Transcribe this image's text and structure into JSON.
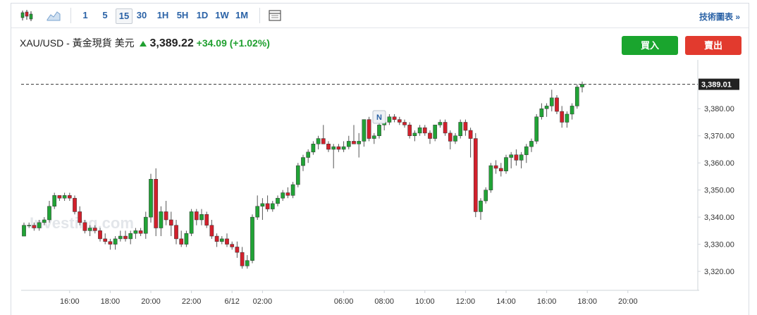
{
  "toolbar": {
    "intervals": [
      "1",
      "5",
      "15",
      "30",
      "1H",
      "5H",
      "1D",
      "1W",
      "1M"
    ],
    "active_interval": "15",
    "tech_chart_link": "技術圖表 »"
  },
  "quote": {
    "symbol": "XAU/USD - 黃金現貨 美元",
    "price": "3,389.22",
    "change": "+34.09",
    "change_pct": "(+1.02%)",
    "direction": "up"
  },
  "actions": {
    "buy": "買入",
    "sell": "賣出"
  },
  "colors": {
    "up": "#21a336",
    "down": "#d2202c",
    "link": "#2a62a6",
    "buy": "#1aa52e",
    "sell": "#e23a2e"
  },
  "chart_data": {
    "type": "candlestick",
    "title": "",
    "xlabel": "",
    "ylabel": "",
    "ylim": [
      3313,
      3398
    ],
    "y_ticks": [
      "3,320.00",
      "3,330.00",
      "3,340.00",
      "3,350.00",
      "3,360.00",
      "3,370.00",
      "3,380.00"
    ],
    "y_tick_values": [
      3320,
      3330,
      3340,
      3350,
      3360,
      3370,
      3380
    ],
    "x_ticks": [
      "16:00",
      "18:00",
      "20:00",
      "22:00",
      "6/12",
      "02:00",
      "06:00",
      "08:00",
      "10:00",
      "12:00",
      "14:00",
      "16:00",
      "18:00",
      "20:00"
    ],
    "x_tick_index": [
      9,
      17,
      25,
      33,
      41,
      47,
      63,
      71,
      79,
      87,
      95,
      103,
      111,
      119
    ],
    "last_price_label": "3,389.01",
    "last_price": 3389.01,
    "news_marker": {
      "label": "N",
      "index": 70
    },
    "watermark": "Investing.com",
    "grid": false,
    "candles": [
      [
        3333,
        3338,
        3333,
        3337
      ],
      [
        3337,
        3338,
        3336,
        3337
      ],
      [
        3337,
        3338,
        3335,
        3336
      ],
      [
        3336,
        3339,
        3335,
        3338
      ],
      [
        3338,
        3340,
        3337,
        3339
      ],
      [
        3339,
        3346,
        3338,
        3344
      ],
      [
        3344,
        3349,
        3343,
        3348
      ],
      [
        3348,
        3348,
        3346,
        3347
      ],
      [
        3347,
        3349,
        3346,
        3348
      ],
      [
        3348,
        3349,
        3346,
        3347
      ],
      [
        3347,
        3348,
        3341,
        3342
      ],
      [
        3342,
        3344,
        3337,
        3338
      ],
      [
        3338,
        3339,
        3334,
        3335
      ],
      [
        3335,
        3337,
        3333,
        3336
      ],
      [
        3336,
        3337,
        3334,
        3335
      ],
      [
        3335,
        3336,
        3331,
        3332
      ],
      [
        3332,
        3334,
        3330,
        3331
      ],
      [
        3331,
        3332,
        3328,
        3330
      ],
      [
        3330,
        3333,
        3328,
        3332
      ],
      [
        3332,
        3335,
        3331,
        3333
      ],
      [
        3333,
        3335,
        3331,
        3332
      ],
      [
        3332,
        3335,
        3330,
        3334
      ],
      [
        3334,
        3336,
        3332,
        3335
      ],
      [
        3335,
        3336,
        3333,
        3334
      ],
      [
        3334,
        3342,
        3332,
        3340
      ],
      [
        3340,
        3356,
        3338,
        3354
      ],
      [
        3354,
        3358,
        3333,
        3336
      ],
      [
        3336,
        3344,
        3333,
        3342
      ],
      [
        3342,
        3346,
        3337,
        3339
      ],
      [
        3339,
        3342,
        3333,
        3337
      ],
      [
        3337,
        3339,
        3330,
        3332
      ],
      [
        3332,
        3335,
        3329,
        3330
      ],
      [
        3330,
        3335,
        3329,
        3334
      ],
      [
        3334,
        3343,
        3333,
        3342
      ],
      [
        3342,
        3343,
        3337,
        3339
      ],
      [
        3339,
        3343,
        3337,
        3341
      ],
      [
        3341,
        3342,
        3336,
        3337
      ],
      [
        3337,
        3339,
        3332,
        3333
      ],
      [
        3333,
        3334,
        3329,
        3331
      ],
      [
        3331,
        3333,
        3330,
        3332
      ],
      [
        3332,
        3334,
        3329,
        3330
      ],
      [
        3330,
        3331,
        3328,
        3329
      ],
      [
        3329,
        3331,
        3325,
        3327
      ],
      [
        3327,
        3329,
        3321,
        3322
      ],
      [
        3322,
        3326,
        3321,
        3324
      ],
      [
        3324,
        3341,
        3323,
        3340
      ],
      [
        3340,
        3348,
        3339,
        3344
      ],
      [
        3344,
        3347,
        3339,
        3345
      ],
      [
        3345,
        3348,
        3342,
        3343
      ],
      [
        3343,
        3346,
        3342,
        3345
      ],
      [
        3345,
        3348,
        3344,
        3347
      ],
      [
        3347,
        3350,
        3346,
        3349
      ],
      [
        3349,
        3351,
        3347,
        3348
      ],
      [
        3348,
        3353,
        3347,
        3352
      ],
      [
        3352,
        3360,
        3351,
        3359
      ],
      [
        3359,
        3363,
        3357,
        3362
      ],
      [
        3362,
        3365,
        3360,
        3364
      ],
      [
        3364,
        3368,
        3363,
        3367
      ],
      [
        3367,
        3370,
        3365,
        3369
      ],
      [
        3369,
        3374,
        3367,
        3367
      ],
      [
        3367,
        3368,
        3364,
        3365
      ],
      [
        3365,
        3367,
        3358,
        3366
      ],
      [
        3366,
        3367,
        3364,
        3365
      ],
      [
        3365,
        3368,
        3364,
        3366
      ],
      [
        3366,
        3370,
        3365,
        3368
      ],
      [
        3368,
        3374,
        3367,
        3367
      ],
      [
        3367,
        3371,
        3362,
        3368
      ],
      [
        3368,
        3376,
        3366,
        3376
      ],
      [
        3376,
        3377,
        3368,
        3369
      ],
      [
        3369,
        3371,
        3367,
        3370
      ],
      [
        3370,
        3376,
        3369,
        3374
      ],
      [
        3374,
        3376,
        3372,
        3375
      ],
      [
        3375,
        3378,
        3374,
        3377
      ],
      [
        3377,
        3378,
        3375,
        3376
      ],
      [
        3376,
        3377,
        3374,
        3375
      ],
      [
        3375,
        3376,
        3373,
        3374
      ],
      [
        3374,
        3375,
        3369,
        3370
      ],
      [
        3370,
        3372,
        3368,
        3371
      ],
      [
        3371,
        3374,
        3370,
        3373
      ],
      [
        3373,
        3374,
        3370,
        3371
      ],
      [
        3371,
        3372,
        3367,
        3369
      ],
      [
        3369,
        3374,
        3368,
        3374
      ],
      [
        3374,
        3376,
        3373,
        3375
      ],
      [
        3375,
        3376,
        3370,
        3371
      ],
      [
        3371,
        3372,
        3365,
        3368
      ],
      [
        3368,
        3371,
        3367,
        3370
      ],
      [
        3370,
        3376,
        3369,
        3375
      ],
      [
        3375,
        3376,
        3370,
        3372
      ],
      [
        3372,
        3373,
        3362,
        3369
      ],
      [
        3369,
        3371,
        3340,
        3342
      ],
      [
        3342,
        3347,
        3339,
        3346
      ],
      [
        3346,
        3351,
        3345,
        3350
      ],
      [
        3350,
        3360,
        3349,
        3359
      ],
      [
        3359,
        3361,
        3356,
        3358
      ],
      [
        3358,
        3360,
        3355,
        3357
      ],
      [
        3357,
        3363,
        3356,
        3362
      ],
      [
        3362,
        3364,
        3358,
        3363
      ],
      [
        3363,
        3365,
        3359,
        3361
      ],
      [
        3361,
        3364,
        3358,
        3363
      ],
      [
        3363,
        3367,
        3360,
        3366
      ],
      [
        3366,
        3369,
        3364,
        3368
      ],
      [
        3368,
        3378,
        3367,
        3377
      ],
      [
        3377,
        3382,
        3376,
        3380
      ],
      [
        3380,
        3382,
        3377,
        3381
      ],
      [
        3381,
        3387,
        3379,
        3384
      ],
      [
        3384,
        3385,
        3378,
        3379
      ],
      [
        3379,
        3381,
        3373,
        3375
      ],
      [
        3375,
        3379,
        3373,
        3378
      ],
      [
        3378,
        3382,
        3376,
        3381
      ],
      [
        3381,
        3389,
        3380,
        3388
      ],
      [
        3388,
        3390,
        3386,
        3389
      ]
    ]
  }
}
